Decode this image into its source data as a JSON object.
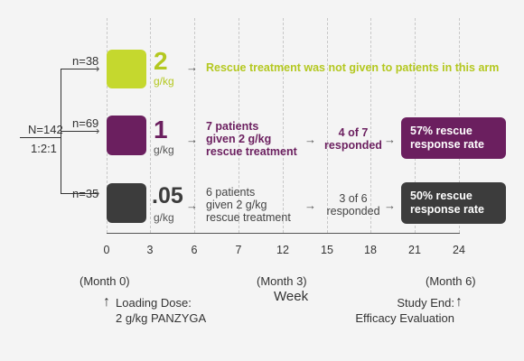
{
  "enroll": {
    "n_total": "N=142",
    "ratio": "1:2:1"
  },
  "arms": [
    {
      "n": "n=38",
      "dose": "2",
      "unit": "g/kg",
      "color": "#c5d82e",
      "note": "Rescue treatment was not given to patients in this arm"
    },
    {
      "n": "n=69",
      "dose": "1",
      "unit": "g/kg",
      "color": "#6b1f5f",
      "desc": "7 patients\ngiven 2 g/kg\nrescue treatment",
      "responded": "4 of 7\nresponded",
      "rate": "57% rescue\nresponse rate"
    },
    {
      "n": "n=35",
      "dose": ".05",
      "unit": "g/kg",
      "color": "#3c3c3c",
      "desc": "6 patients\ngiven 2 g/kg\nrescue treatment",
      "responded": "3 of 6\nresponded",
      "rate": "50% rescue\nresponse rate"
    }
  ],
  "axis": {
    "ticks": [
      "0",
      "3",
      "6",
      "7",
      "12",
      "15",
      "18",
      "21",
      "24"
    ],
    "month0": "(Month 0)",
    "month3": "(Month 3)",
    "month6": "(Month 6)",
    "title": "Week"
  },
  "footer": {
    "loading": "Loading Dose:\n2 g/kg PANZYGA",
    "study_end": "Study End:\nEfficacy Evaluation"
  }
}
